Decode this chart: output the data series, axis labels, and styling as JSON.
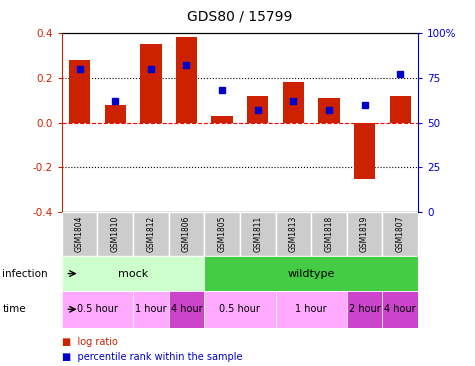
{
  "title": "GDS80 / 15799",
  "samples": [
    "GSM1804",
    "GSM1810",
    "GSM1812",
    "GSM1806",
    "GSM1805",
    "GSM1811",
    "GSM1813",
    "GSM1818",
    "GSM1819",
    "GSM1807"
  ],
  "log_ratio": [
    0.28,
    0.08,
    0.35,
    0.38,
    0.03,
    0.12,
    0.18,
    0.11,
    -0.25,
    0.12
  ],
  "percentile": [
    80,
    62,
    80,
    82,
    68,
    57,
    62,
    57,
    60,
    77
  ],
  "ylim_left": [
    -0.4,
    0.4
  ],
  "ylim_right": [
    0,
    100
  ],
  "yticks_left": [
    -0.4,
    -0.2,
    0.0,
    0.2,
    0.4
  ],
  "yticks_right": [
    0,
    25,
    50,
    75,
    100
  ],
  "bar_color": "#cc2200",
  "dot_color": "#0000cc",
  "infection_labels": [
    {
      "label": "mock",
      "start": 0,
      "end": 4,
      "color": "#ccffcc"
    },
    {
      "label": "wildtype",
      "start": 4,
      "end": 10,
      "color": "#44cc44"
    }
  ],
  "time_labels": [
    {
      "label": "0.5 hour",
      "start": 0,
      "end": 2,
      "color": "#ffaaff"
    },
    {
      "label": "1 hour",
      "start": 2,
      "end": 3,
      "color": "#ffaaff"
    },
    {
      "label": "4 hour",
      "start": 3,
      "end": 4,
      "color": "#cc44cc"
    },
    {
      "label": "0.5 hour",
      "start": 4,
      "end": 6,
      "color": "#ffaaff"
    },
    {
      "label": "1 hour",
      "start": 6,
      "end": 8,
      "color": "#ffaaff"
    },
    {
      "label": "2 hour",
      "start": 8,
      "end": 9,
      "color": "#cc44cc"
    },
    {
      "label": "4 hour",
      "start": 9,
      "end": 10,
      "color": "#cc44cc"
    }
  ],
  "legend_items": [
    {
      "label": "log ratio",
      "color": "#cc2200"
    },
    {
      "label": "percentile rank within the sample",
      "color": "#0000cc"
    }
  ]
}
